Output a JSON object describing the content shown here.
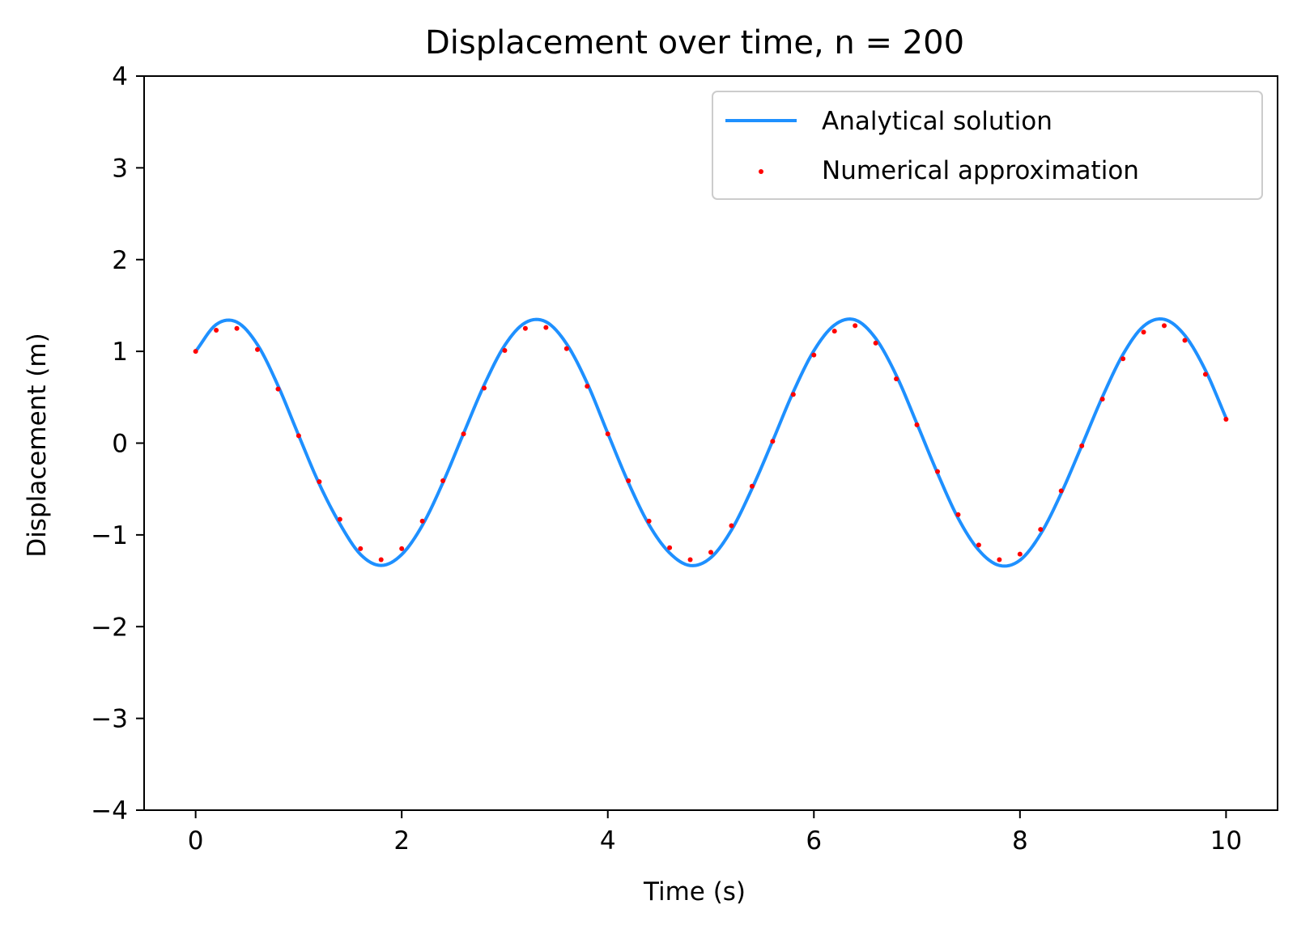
{
  "chart_data": {
    "type": "line",
    "title": "Displacement over time, n = 200",
    "xlabel": "Time (s)",
    "ylabel": "Displacement (m)",
    "xlim": [
      -0.5,
      10.5
    ],
    "ylim": [
      -4,
      4
    ],
    "xticks": [
      0,
      2,
      4,
      6,
      8,
      10
    ],
    "xtick_labels": [
      "0",
      "2",
      "4",
      "6",
      "8",
      "10"
    ],
    "yticks": [
      -4,
      -3,
      -2,
      -1,
      0,
      1,
      2,
      3,
      4
    ],
    "ytick_labels": [
      "−4",
      "−3",
      "−2",
      "−1",
      "0",
      "1",
      "2",
      "3",
      "4"
    ],
    "grid": false,
    "legend_position": "top-right",
    "series": [
      {
        "name": "Analytical solution",
        "kind": "line",
        "color": "#1e90ff",
        "x": [
          0.0,
          0.2,
          0.4,
          0.6,
          0.8,
          1.0,
          1.2,
          1.4,
          1.6,
          1.8,
          2.0,
          2.2,
          2.4,
          2.6,
          2.8,
          3.0,
          3.2,
          3.4,
          3.6,
          3.8,
          4.0,
          4.2,
          4.4,
          4.6,
          4.8,
          5.0,
          5.2,
          5.4,
          5.6,
          5.8,
          6.0,
          6.2,
          6.4,
          6.6,
          6.8,
          7.0,
          7.2,
          7.4,
          7.6,
          7.8,
          8.0,
          8.2,
          8.4,
          8.6,
          8.8,
          9.0,
          9.2,
          9.4,
          9.6,
          9.8,
          10.0
        ],
        "y": [
          1.0,
          1.293,
          1.319,
          1.073,
          0.625,
          0.084,
          -0.445,
          -0.88,
          -1.213,
          -1.333,
          -1.214,
          -0.896,
          -0.43,
          0.105,
          0.633,
          1.066,
          1.313,
          1.322,
          1.082,
          0.653,
          0.107,
          -0.431,
          -0.889,
          -1.197,
          -1.334,
          -1.248,
          -0.948,
          -0.495,
          0.024,
          0.558,
          1.007,
          1.287,
          1.343,
          1.141,
          0.738,
          0.212,
          -0.328,
          -0.818,
          -1.166,
          -1.333,
          -1.276,
          -0.991,
          -0.547,
          -0.027,
          0.503,
          0.967,
          1.275,
          1.349,
          1.174,
          0.794,
          0.274
        ]
      },
      {
        "name": "Numerical approximation",
        "kind": "scatter",
        "color": "#ff0000",
        "x": [
          0.0,
          0.2,
          0.4,
          0.6,
          0.8,
          1.0,
          1.2,
          1.4,
          1.6,
          1.8,
          2.0,
          2.2,
          2.4,
          2.6,
          2.8,
          3.0,
          3.2,
          3.4,
          3.6,
          3.8,
          4.0,
          4.2,
          4.4,
          4.6,
          4.8,
          5.0,
          5.2,
          5.4,
          5.6,
          5.8,
          6.0,
          6.2,
          6.4,
          6.6,
          6.8,
          7.0,
          7.2,
          7.4,
          7.6,
          7.8,
          8.0,
          8.2,
          8.4,
          8.6,
          8.8,
          9.0,
          9.2,
          9.4,
          9.6,
          9.8,
          10.0
        ],
        "y": [
          1.0,
          1.23,
          1.25,
          1.02,
          0.59,
          0.08,
          -0.42,
          -0.83,
          -1.15,
          -1.27,
          -1.15,
          -0.85,
          -0.41,
          0.1,
          0.6,
          1.01,
          1.25,
          1.26,
          1.03,
          0.62,
          0.1,
          -0.41,
          -0.85,
          -1.14,
          -1.27,
          -1.19,
          -0.9,
          -0.47,
          0.02,
          0.53,
          0.96,
          1.22,
          1.28,
          1.09,
          0.7,
          0.2,
          -0.31,
          -0.78,
          -1.11,
          -1.27,
          -1.21,
          -0.94,
          -0.52,
          -0.03,
          0.48,
          0.92,
          1.21,
          1.28,
          1.12,
          0.75,
          0.26
        ]
      }
    ]
  }
}
